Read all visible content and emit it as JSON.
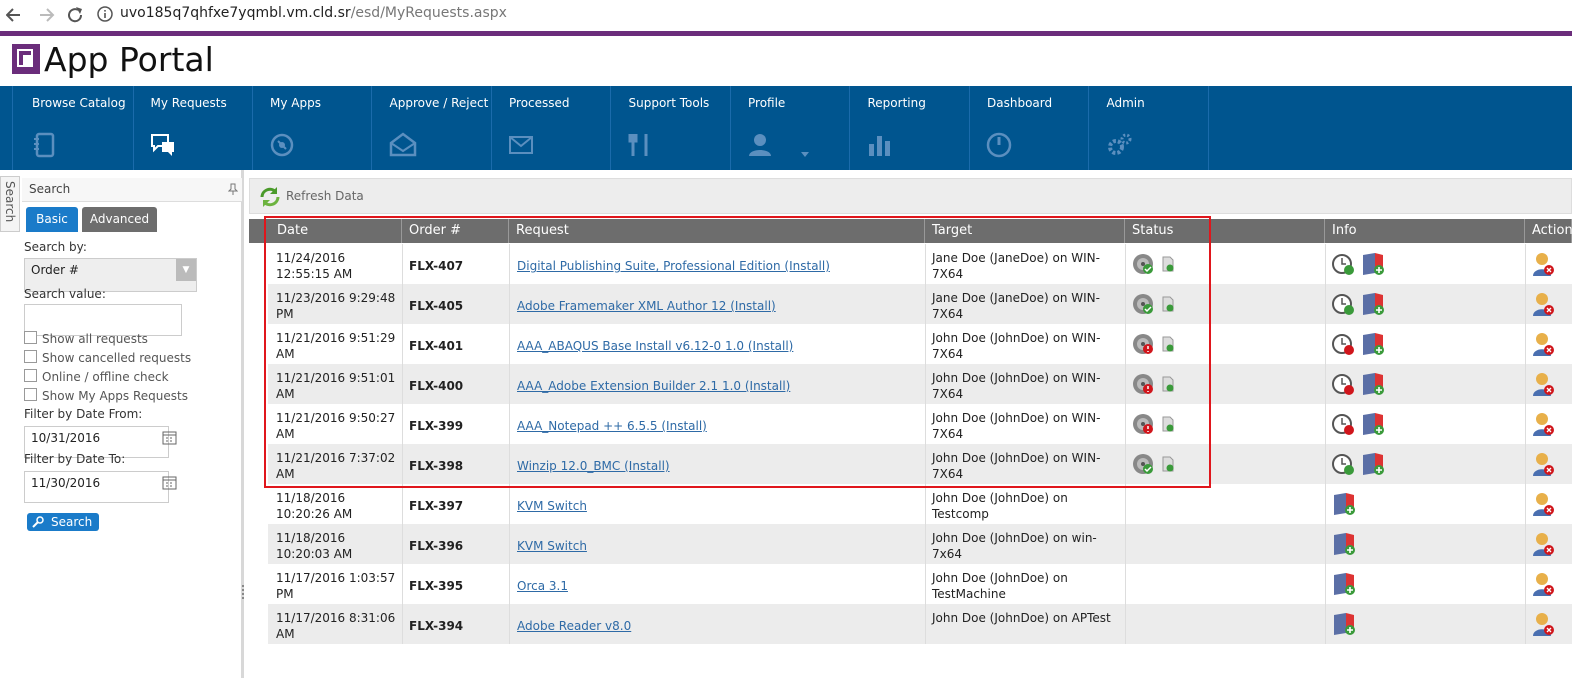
{
  "browser": {
    "url_host": "uvo185q7qhfxe7yqmbl.vm.cld.sr",
    "url_path": "/esd/MyRequests.aspx"
  },
  "header": {
    "title": "App Portal"
  },
  "nav": {
    "items": [
      "Browse Catalog",
      "My Requests",
      "My Apps",
      "Approve / Reject",
      "Processed",
      "Support Tools",
      "Profile",
      "Reporting",
      "Dashboard",
      "Admin"
    ]
  },
  "sidebar": {
    "tab": "Search",
    "title": "Search",
    "tabs": [
      "Basic",
      "Advanced"
    ],
    "search_by_label": "Search by:",
    "search_by_value": "Order #",
    "search_value_label": "Search value:",
    "checkboxes": [
      "Show all requests",
      "Show cancelled requests",
      "Online / offline check",
      "Show My Apps Requests"
    ],
    "date_from_label": "Filter by Date From:",
    "date_from": "10/31/2016",
    "date_to_label": "Filter by Date To:",
    "date_to": "11/30/2016",
    "button": "Search"
  },
  "toolbar": {
    "refresh": "Refresh Data"
  },
  "table": {
    "columns": [
      "Date",
      "Order #",
      "Request",
      "Target",
      "Status",
      "Info",
      "Action"
    ],
    "rows": [
      {
        "date": "11/24/2016 12:55:15 AM",
        "order": "FLX-407",
        "request": "Digital Publishing Suite, Professional Edition (Install)",
        "target": "Jane Doe (JaneDoe) on WIN-7X64"
      },
      {
        "date": "11/23/2016 9:29:48 PM",
        "order": "FLX-405",
        "request": "Adobe Framemaker XML Author 12 (Install)",
        "target": "Jane Doe (JaneDoe) on WIN-7X64"
      },
      {
        "date": "11/21/2016 9:51:29 AM",
        "order": "FLX-401",
        "request": "AAA_ABAQUS Base Install v6.12-0 1.0 (Install)",
        "target": "John Doe (JohnDoe) on WIN-7X64"
      },
      {
        "date": "11/21/2016 9:51:01 AM",
        "order": "FLX-400",
        "request": "AAA_Adobe Extension Builder 2.1 1.0 (Install)",
        "target": "John Doe (JohnDoe) on WIN-7X64"
      },
      {
        "date": "11/21/2016 9:50:27 AM",
        "order": "FLX-399",
        "request": "AAA_Notepad ++ 6.5.5 (Install)",
        "target": "John Doe (JohnDoe) on WIN-7X64"
      },
      {
        "date": "11/21/2016 7:37:02 AM",
        "order": "FLX-398",
        "request": "Winzip 12.0_BMC (Install)",
        "target": "John Doe (JohnDoe) on WIN-7X64"
      },
      {
        "date": "11/18/2016 10:20:26 AM",
        "order": "FLX-397",
        "request": "KVM Switch",
        "target": "John Doe (JohnDoe) on Testcomp"
      },
      {
        "date": "11/18/2016 10:20:03 AM",
        "order": "FLX-396",
        "request": "KVM Switch",
        "target": "John Doe (JohnDoe) on win-7x64"
      },
      {
        "date": "11/17/2016 1:03:57 PM",
        "order": "FLX-395",
        "request": "Orca 3.1",
        "target": "John Doe (JohnDoe) on TestMachine"
      },
      {
        "date": "11/17/2016 8:31:06 AM",
        "order": "FLX-394",
        "request": "Adobe Reader v8.0",
        "target": "John Doe (JohnDoe) on APTest"
      }
    ]
  }
}
